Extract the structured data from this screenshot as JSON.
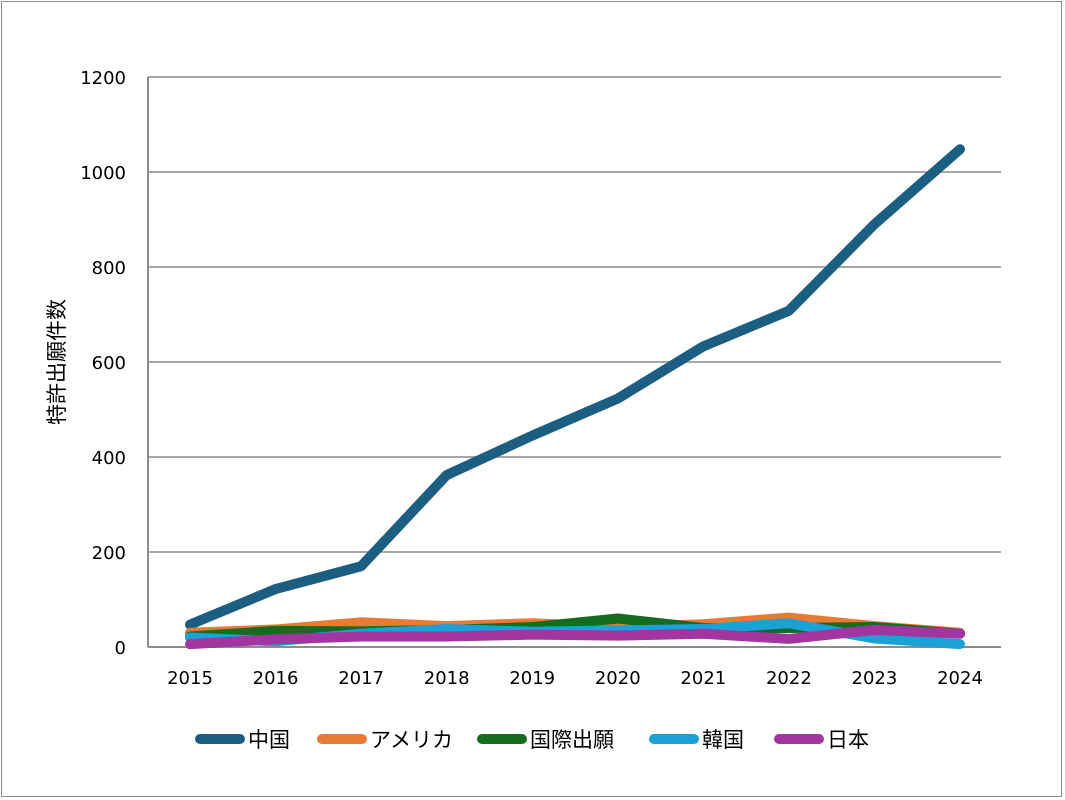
{
  "chart_data": {
    "type": "line",
    "ylabel": "特許出願件数",
    "xlabel": "",
    "x": [
      "2015",
      "2016",
      "2017",
      "2018",
      "2019",
      "2020",
      "2021",
      "2022",
      "2023",
      "2024"
    ],
    "ylim": [
      0,
      1200
    ],
    "yticks": [
      0,
      200,
      400,
      600,
      800,
      1000,
      1200
    ],
    "grid": true,
    "legend_position": "bottom",
    "series": [
      {
        "name": "中国",
        "color": "#1c5e82",
        "values": [
          47,
          122,
          170,
          362,
          445,
          523,
          633,
          708,
          890,
          1048
        ]
      },
      {
        "name": "アメリカ",
        "color": "#e97a34",
        "values": [
          30,
          37,
          52,
          44,
          50,
          42,
          48,
          62,
          44,
          30
        ]
      },
      {
        "name": "国際出願",
        "color": "#156b20",
        "values": [
          22,
          34,
          33,
          36,
          42,
          60,
          40,
          40,
          42,
          28
        ]
      },
      {
        "name": "韓国",
        "color": "#1aa2d6",
        "values": [
          20,
          12,
          28,
          38,
          32,
          35,
          38,
          50,
          18,
          6
        ]
      },
      {
        "name": "日本",
        "color": "#a2359f",
        "values": [
          6,
          16,
          22,
          22,
          26,
          24,
          28,
          17,
          36,
          28
        ]
      }
    ]
  }
}
